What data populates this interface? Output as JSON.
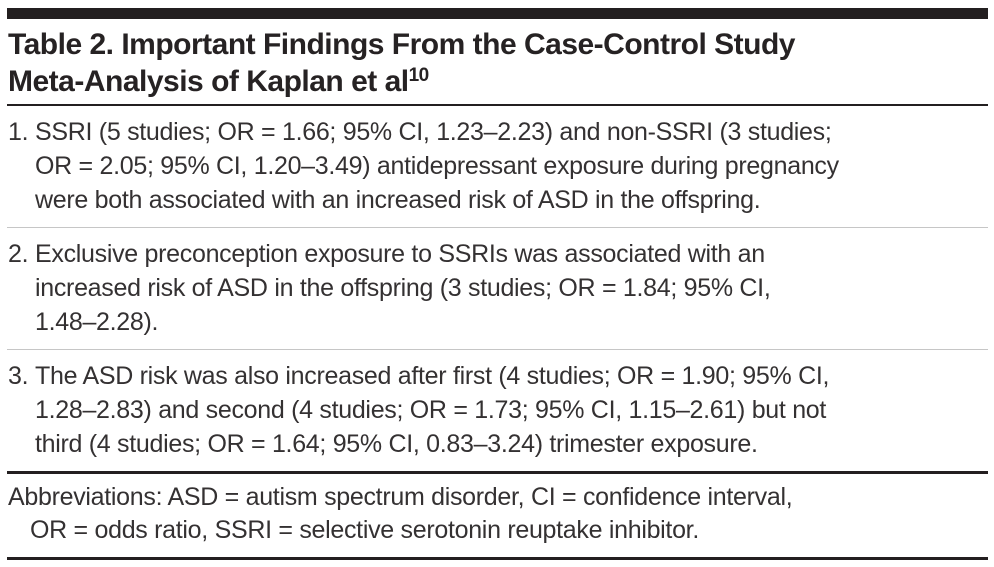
{
  "colors": {
    "border_dark": "#231f20",
    "separator_light": "#c6c6c6",
    "body_text": "#343132"
  },
  "title": {
    "line1": "Table 2. Important Findings From the Case-Control Study",
    "line2": "Meta-Analysis of Kaplan et al",
    "reference_superscript": "10"
  },
  "findings": [
    {
      "number": "1.",
      "lines": [
        "SSRI (5 studies; OR = 1.66; 95% CI, 1.23–2.23) and non-SSRI (3 studies;",
        "OR = 2.05; 95% CI, 1.20–3.49) antidepressant exposure during pregnancy",
        "were both associated with an increased risk of ASD in the offspring."
      ]
    },
    {
      "number": "2.",
      "lines": [
        "Exclusive preconception exposure to SSRIs was associated with an",
        "increased risk of ASD in the offspring (3 studies; OR = 1.84; 95% CI,",
        "1.48–2.28)."
      ]
    },
    {
      "number": "3.",
      "lines": [
        "The ASD risk was also increased after first (4 studies; OR = 1.90; 95% CI,",
        "1.28–2.83) and second (4 studies; OR = 1.73; 95% CI, 1.15–2.61) but not",
        "third (4 studies; OR = 1.64; 95% CI, 0.83–3.24) trimester exposure."
      ]
    }
  ],
  "abbreviations": {
    "lines": [
      "Abbreviations: ASD = autism spectrum disorder, CI = confidence interval,",
      "OR = odds ratio, SSRI = selective serotonin reuptake inhibitor."
    ]
  }
}
